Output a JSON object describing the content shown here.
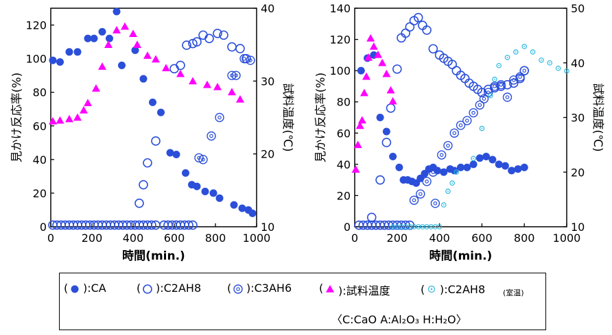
{
  "colors": {
    "ca": "#2b4fd9",
    "c2ah8": "#2b4fd9",
    "c3ah6": "#2b4fd9",
    "temp": "#ff00ff",
    "c2ah8_rt": "#2fb8e0"
  },
  "chart_data": [
    {
      "type": "scatter",
      "xlabel": "時間(min.)",
      "ylabel": "見かけ反応率(%)",
      "y2label": "試料温度(℃)",
      "xlim": [
        0,
        1000
      ],
      "ylim": [
        0,
        130
      ],
      "y2lim": [
        10,
        40
      ],
      "xticks": [
        "0",
        "200",
        "400",
        "600",
        "800",
        "1000"
      ],
      "yticks": [
        "0",
        "20",
        "40",
        "60",
        "80",
        "100",
        "120"
      ],
      "y2ticks": [
        "10",
        "20",
        "30",
        "40"
      ],
      "series": [
        {
          "key": "CA",
          "marker": "filled-circle",
          "axis": "left",
          "x": [
            10,
            45,
            90,
            130,
            180,
            210,
            250,
            285,
            320,
            345,
            410,
            450,
            495,
            535,
            580,
            610,
            655,
            685,
            710,
            750,
            790,
            820,
            890,
            930,
            960,
            980
          ],
          "y": [
            99,
            98,
            104,
            104,
            112,
            112,
            116,
            112,
            128,
            96,
            105,
            88,
            74,
            68,
            44,
            43,
            32,
            25,
            24,
            21,
            20,
            17,
            13,
            11,
            10,
            8
          ]
        },
        {
          "key": "C2AH8",
          "marker": "open-circle",
          "axis": "left",
          "x": [
            10,
            30,
            50,
            70,
            90,
            110,
            130,
            150,
            170,
            190,
            210,
            230,
            250,
            270,
            290,
            310,
            330,
            350,
            370,
            390,
            410,
            430,
            450,
            470,
            490,
            510,
            550,
            570,
            590,
            610,
            630,
            650,
            670,
            690,
            430,
            450,
            470,
            510,
            600,
            630,
            660,
            690,
            710,
            740,
            770,
            810,
            840,
            880,
            920,
            950
          ],
          "y": [
            1,
            1,
            1,
            1,
            1,
            1,
            1,
            1,
            1,
            1,
            1,
            1,
            1,
            1,
            1,
            1,
            1,
            1,
            1,
            1,
            1,
            1,
            1,
            1,
            1,
            1,
            1,
            1,
            1,
            1,
            1,
            1,
            1,
            1,
            14,
            25,
            38,
            51,
            94,
            96,
            108,
            109,
            110,
            114,
            112,
            115,
            114,
            107,
            106,
            100
          ]
        },
        {
          "key": "C3AH6",
          "marker": "double-circle",
          "axis": "left",
          "x": [
            720,
            740,
            780,
            820,
            880,
            900,
            940,
            970
          ],
          "y": [
            41,
            40,
            54,
            65,
            90,
            90,
            100,
            99
          ]
        },
        {
          "key": "試料温度",
          "marker": "triangle",
          "axis": "right",
          "x": [
            10,
            45,
            90,
            130,
            160,
            180,
            220,
            250,
            280,
            320,
            360,
            400,
            420,
            470,
            510,
            560,
            630,
            690,
            760,
            810,
            880,
            920
          ],
          "y2": [
            24.5,
            24.6,
            24.8,
            25.0,
            26.0,
            27.0,
            29.0,
            32.0,
            35.0,
            37.0,
            37.5,
            36.5,
            35.0,
            33.5,
            33.0,
            31.8,
            31.0,
            30.0,
            29.5,
            29.2,
            28.5,
            27.5
          ]
        }
      ]
    },
    {
      "type": "scatter",
      "xlabel": "時間(min.)",
      "ylabel": "見かけ反応率(%)",
      "y2label": "試料温度(℃)",
      "xlim": [
        0,
        1000
      ],
      "ylim": [
        0,
        140
      ],
      "y2lim": [
        10,
        50
      ],
      "xticks": [
        "0",
        "200",
        "400",
        "600",
        "800",
        "1000"
      ],
      "yticks": [
        "0",
        "20",
        "40",
        "60",
        "80",
        "100",
        "120",
        "140"
      ],
      "y2ticks": [
        "10",
        "20",
        "30",
        "40",
        "50"
      ],
      "series": [
        {
          "key": "CA",
          "marker": "filled-circle",
          "axis": "left",
          "x": [
            30,
            60,
            90,
            120,
            150,
            180,
            210,
            230,
            250,
            270,
            290,
            310,
            330,
            350,
            370,
            390,
            420,
            450,
            470,
            500,
            530,
            560,
            590,
            620,
            650,
            680,
            710,
            740,
            770,
            800
          ],
          "y": [
            100,
            108,
            110,
            70,
            61,
            45,
            38,
            30,
            30,
            29,
            28,
            31,
            34,
            37,
            38,
            36,
            35,
            37,
            36,
            38,
            38,
            40,
            44,
            45,
            43,
            40,
            39,
            36,
            37,
            38
          ]
        },
        {
          "key": "C2AH8",
          "marker": "open-circle",
          "axis": "left",
          "x": [
            20,
            40,
            60,
            80,
            100,
            120,
            140,
            160,
            180,
            200,
            220,
            240,
            260,
            80,
            120,
            150,
            170,
            200,
            220,
            240,
            260,
            280,
            300,
            320,
            340,
            370,
            400,
            420,
            440,
            460,
            480,
            500,
            520,
            540,
            560,
            580,
            600,
            630,
            660,
            690,
            720,
            750,
            780,
            800
          ],
          "y": [
            1,
            1,
            1,
            1,
            1,
            1,
            1,
            1,
            1,
            1,
            1,
            1,
            1,
            6,
            30,
            54,
            76,
            101,
            121,
            124,
            128,
            132,
            134,
            129,
            126,
            114,
            110,
            108,
            106,
            104,
            100,
            97,
            95,
            92,
            90,
            88,
            86,
            88,
            89,
            90,
            91,
            92,
            95,
            100
          ]
        },
        {
          "key": "C3AH6",
          "marker": "double-circle",
          "axis": "left",
          "x": [
            280,
            310,
            340,
            370,
            380,
            410,
            440,
            470,
            500,
            530,
            560,
            590,
            610,
            630,
            660,
            690,
            720,
            750,
            780,
            800
          ],
          "y": [
            17,
            21,
            29,
            35,
            15,
            46,
            52,
            60,
            65,
            68,
            73,
            78,
            82,
            86,
            90,
            91,
            83,
            94,
            96,
            100
          ]
        },
        {
          "key": "試料温度",
          "marker": "triangle",
          "axis": "right",
          "x": [
            5,
            15,
            25,
            35,
            45,
            55,
            65,
            75,
            90,
            110,
            130,
            150,
            170,
            180
          ],
          "y2": [
            20.5,
            25.0,
            28.5,
            29.5,
            34.5,
            37.5,
            41.0,
            44.5,
            43.0,
            41.5,
            40.0,
            38.0,
            35.0,
            33.0
          ]
        },
        {
          "key": "C2AH8_RT",
          "marker": "small-circle",
          "axis": "right",
          "x": [
            180,
            200,
            220,
            240,
            260,
            280,
            300,
            320,
            340,
            360,
            380,
            400,
            420,
            440,
            460,
            480,
            560,
            600,
            640,
            660,
            680,
            720,
            760,
            800,
            840,
            880,
            920,
            960,
            1000
          ],
          "y2": [
            10.0,
            10.0,
            10.0,
            10.0,
            10.0,
            10.0,
            10.0,
            10.0,
            10.0,
            10.0,
            10.0,
            10.0,
            14.0,
            16.5,
            18.0,
            20.0,
            22.5,
            28.0,
            34.0,
            37.0,
            39.5,
            41.0,
            42.0,
            43.0,
            42.0,
            40.5,
            40.0,
            39.0,
            38.5
          ]
        }
      ]
    }
  ],
  "legend": {
    "items": [
      {
        "open": "(",
        "close": "):CA",
        "marker": "filled-circle"
      },
      {
        "open": "(",
        "close": "):C2AH8",
        "marker": "open-circle"
      },
      {
        "open": "(",
        "close": "):C3AH6",
        "marker": "double-circle"
      },
      {
        "open": "(",
        "close": "):試料温度",
        "marker": "triangle"
      },
      {
        "open": "(",
        "close": "):C2AH8",
        "small": "(室温)",
        "marker": "small-circle"
      }
    ],
    "note": "〈C:CaO A:Al₂O₃ H:H₂O〉"
  }
}
